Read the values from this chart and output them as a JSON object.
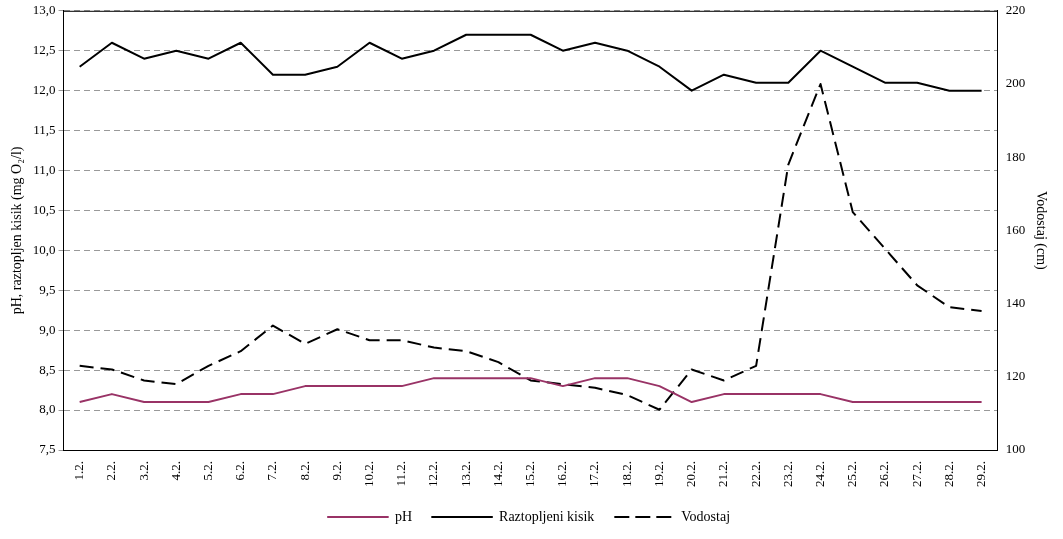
{
  "chart_data": {
    "type": "line",
    "ylabel": "pH, raztopljen kisik (mg O₂/l)",
    "y2label": "Vodostaj (cm)",
    "categories": [
      "1.2.",
      "2.2.",
      "3.2.",
      "4.2.",
      "5.2.",
      "6.2.",
      "7.2.",
      "8.2.",
      "9.2.",
      "10.2.",
      "11.2.",
      "12.2.",
      "13.2.",
      "14.2.",
      "15.2.",
      "16.2.",
      "17.2.",
      "18.2.",
      "19.2.",
      "20.2.",
      "21.2.",
      "22.2.",
      "23.2.",
      "24.2.",
      "25.2.",
      "26.2.",
      "27.2.",
      "28.2.",
      "29.2."
    ],
    "series": [
      {
        "name": "pH",
        "color": "#993366",
        "line_style": "solid",
        "values": [
          8.1,
          8.2,
          8.1,
          8.1,
          8.1,
          8.2,
          8.2,
          8.3,
          8.3,
          8.3,
          8.3,
          8.4,
          8.4,
          8.4,
          8.4,
          8.3,
          8.4,
          8.4,
          8.3,
          8.1,
          8.2,
          8.2,
          8.2,
          8.2,
          8.1,
          8.1,
          8.1,
          8.1,
          8.1
        ]
      },
      {
        "name": "Raztopljeni kisik",
        "color": "#000000",
        "line_style": "solid",
        "values": [
          12.3,
          12.6,
          12.4,
          12.5,
          12.4,
          12.6,
          12.2,
          12.2,
          12.3,
          12.6,
          12.4,
          12.5,
          12.7,
          12.7,
          12.7,
          12.5,
          12.6,
          12.5,
          12.3,
          12.0,
          12.2,
          12.1,
          12.1,
          12.5,
          12.3,
          12.1,
          12.1,
          12.0,
          12.0
        ]
      },
      {
        "name": "Vodostaj",
        "color": "#000000",
        "line_style": "dashed",
        "axis": "y2",
        "values": [
          123,
          122,
          119,
          118,
          123,
          127,
          134,
          129,
          133,
          130,
          130,
          128,
          127,
          124,
          119,
          118,
          117,
          115,
          111,
          122,
          119,
          123,
          178,
          200,
          165,
          155,
          145,
          139,
          138
        ]
      }
    ],
    "ylim": [
      7.5,
      13
    ],
    "yticks": [
      {
        "value": 7.5,
        "label": "7,5"
      },
      {
        "value": 8,
        "label": "8,0"
      },
      {
        "value": 8.5,
        "label": "8,5"
      },
      {
        "value": 9,
        "label": "9,0"
      },
      {
        "value": 9.5,
        "label": "9,5"
      },
      {
        "value": 10,
        "label": "10,0"
      },
      {
        "value": 10.5,
        "label": "10,5"
      },
      {
        "value": 11,
        "label": "11,0"
      },
      {
        "value": 11.5,
        "label": "11,5"
      },
      {
        "value": 12,
        "label": "12,0"
      },
      {
        "value": 12.5,
        "label": "12,5"
      },
      {
        "value": 13,
        "label": "13,0"
      }
    ],
    "y2lim": [
      100,
      220
    ],
    "y2ticks": [
      100,
      120,
      140,
      160,
      180,
      200,
      220
    ],
    "grid": "y",
    "legend": "bottom",
    "marker": "none"
  }
}
